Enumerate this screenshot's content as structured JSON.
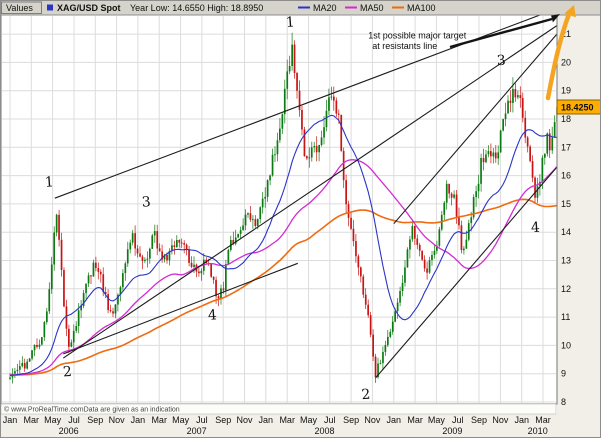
{
  "header": {
    "values_label": "Values",
    "symbol": "XAG/USD Spot",
    "symbol_color": "#2a35c8",
    "year_stats": "Year Low: 14.6550 High: 18.8950",
    "ma_legend": [
      {
        "label": "MA20",
        "period": 20,
        "color": "#2a35c8"
      },
      {
        "label": "MA50",
        "period": 50,
        "color": "#d32bd3"
      },
      {
        "label": "MA100",
        "period": 100,
        "color": "#ef6b12"
      }
    ]
  },
  "axes": {
    "price_ticks": [
      8,
      9,
      10,
      11,
      12,
      13,
      14,
      15,
      16,
      17,
      18,
      19,
      20,
      21
    ],
    "current_price_label": "18.4250",
    "current_price_value": 18.425,
    "month_cycle": [
      "Jan",
      "Mar",
      "May",
      "Jul",
      "Sep",
      "Nov"
    ],
    "years": [
      "2006",
      "2007",
      "2008",
      "2009",
      "2010"
    ]
  },
  "footer": {
    "copyright": "© www.ProRealTime.comData are given as an indication"
  },
  "chart_data": {
    "type": "candlestick",
    "symbol": "XAG/USD Spot",
    "period": "weekly",
    "x_start": "Jan 2006",
    "x_end": "Apr 2010",
    "ylim": [
      7.9,
      21.7
    ],
    "grid": true,
    "legend_position": "top",
    "year_low": 14.655,
    "year_high": 18.895,
    "last_price": 18.425,
    "up_color": "#0c7a12",
    "down_color": "#c81414",
    "price_path_keypoints": [
      [
        0,
        8.95
      ],
      [
        1,
        9.2
      ],
      [
        2,
        9.6
      ],
      [
        3,
        10.4
      ],
      [
        3.6,
        11.6
      ],
      [
        4.3,
        14.9
      ],
      [
        4.7,
        13.2
      ],
      [
        5.1,
        11.4
      ],
      [
        5.5,
        10.0
      ],
      [
        5.9,
        10.2
      ],
      [
        6.5,
        11.2
      ],
      [
        7.3,
        12.5
      ],
      [
        8.2,
        12.9
      ],
      [
        9.0,
        11.6
      ],
      [
        9.6,
        11.0
      ],
      [
        10.5,
        12.3
      ],
      [
        11.4,
        13.9
      ],
      [
        12.1,
        13.1
      ],
      [
        12.8,
        12.8
      ],
      [
        13.5,
        14.0
      ],
      [
        14.2,
        12.9
      ],
      [
        15.0,
        13.4
      ],
      [
        15.8,
        13.9
      ],
      [
        16.8,
        13.1
      ],
      [
        17.6,
        12.6
      ],
      [
        18.4,
        13.0
      ],
      [
        19.3,
        11.9
      ],
      [
        19.9,
        11.8
      ],
      [
        20.6,
        13.5
      ],
      [
        21.5,
        13.8
      ],
      [
        22.3,
        14.6
      ],
      [
        23.2,
        14.2
      ],
      [
        24.2,
        15.9
      ],
      [
        25.2,
        17.4
      ],
      [
        26.1,
        19.7
      ],
      [
        26.5,
        20.7
      ],
      [
        27.0,
        18.6
      ],
      [
        27.6,
        16.9
      ],
      [
        28.5,
        16.8
      ],
      [
        29.3,
        17.4
      ],
      [
        30.1,
        18.9
      ],
      [
        30.8,
        18.1
      ],
      [
        31.5,
        15.0
      ],
      [
        32.3,
        13.4
      ],
      [
        33.1,
        12.1
      ],
      [
        33.8,
        10.5
      ],
      [
        34.3,
        9.0
      ],
      [
        34.8,
        9.6
      ],
      [
        35.5,
        10.3
      ],
      [
        36.3,
        11.2
      ],
      [
        37.2,
        13.3
      ],
      [
        37.8,
        14.2
      ],
      [
        38.5,
        13.2
      ],
      [
        39.2,
        12.7
      ],
      [
        40.1,
        13.8
      ],
      [
        41.0,
        15.7
      ],
      [
        41.7,
        15.2
      ],
      [
        42.4,
        13.3
      ],
      [
        43.2,
        14.6
      ],
      [
        44.2,
        16.4
      ],
      [
        44.9,
        17.1
      ],
      [
        45.6,
        16.4
      ],
      [
        46.4,
        18.2
      ],
      [
        47.2,
        19.1
      ],
      [
        47.9,
        18.6
      ],
      [
        48.6,
        16.9
      ],
      [
        49.3,
        15.0
      ],
      [
        49.9,
        16.3
      ],
      [
        50.3,
        17.3
      ],
      [
        50.7,
        17.0
      ],
      [
        51.3,
        18.4
      ]
    ],
    "trendlines": [
      {
        "from": [
          5.0,
          9.55
        ],
        "to": [
          51.3,
          21.3
        ]
      },
      {
        "from": [
          4.2,
          15.2
        ],
        "to": [
          51.3,
          21.9
        ]
      },
      {
        "from": [
          34.3,
          8.85
        ],
        "to": [
          51.3,
          16.3
        ]
      },
      {
        "from": [
          36.0,
          14.3
        ],
        "to": [
          51.3,
          21.0
        ]
      },
      {
        "from": [
          5.0,
          9.7
        ],
        "to": [
          27.0,
          12.9
        ]
      }
    ],
    "wave_labels": [
      {
        "text": "1",
        "month": 3.3,
        "price": 15.6
      },
      {
        "text": "2",
        "month": 5.0,
        "price": 8.9
      },
      {
        "text": "3",
        "month": 12.4,
        "price": 14.9
      },
      {
        "text": "4",
        "month": 18.6,
        "price": 10.9
      },
      {
        "text": "1",
        "month": 25.9,
        "price": 21.25
      },
      {
        "text": "2",
        "month": 33.0,
        "price": 8.1
      },
      {
        "text": "3",
        "month": 45.7,
        "price": 19.9
      },
      {
        "text": "4",
        "month": 48.9,
        "price": 14.0
      }
    ],
    "annotation": {
      "lines": [
        "1st possible major target",
        "at resistants line"
      ],
      "month": 33.6,
      "price": 20.85
    }
  }
}
